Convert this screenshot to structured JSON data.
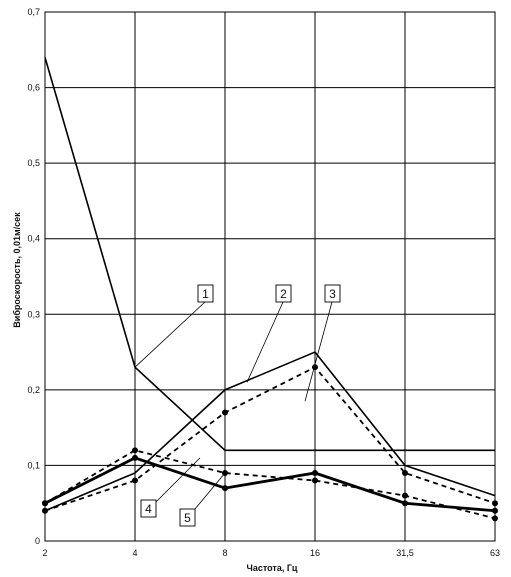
{
  "chart_data": {
    "type": "line",
    "title": "",
    "xlabel": "Частота, Гц",
    "ylabel": "Виброскорость, 0,01м/сек",
    "categories": [
      "2",
      "4",
      "8",
      "16",
      "31,5",
      "63"
    ],
    "ylim": [
      0,
      0.7
    ],
    "yticks": [
      "0",
      "0,1",
      "0,2",
      "0,3",
      "0,4",
      "0,5",
      "0,6",
      "0,7"
    ],
    "grid": true,
    "legend": "none",
    "series": [
      {
        "name": "1",
        "style": "solid-thin",
        "marker": "none",
        "values": [
          0.64,
          0.23,
          0.12,
          0.12,
          0.12,
          0.12
        ]
      },
      {
        "name": "2",
        "style": "solid-thin",
        "marker": "none",
        "values": [
          0.04,
          0.09,
          0.2,
          0.25,
          0.1,
          0.06
        ]
      },
      {
        "name": "3",
        "style": "dashed",
        "marker": "dot",
        "values": [
          0.04,
          0.08,
          0.17,
          0.23,
          0.09,
          0.05
        ]
      },
      {
        "name": "4",
        "style": "dashed",
        "marker": "dot",
        "values": [
          0.05,
          0.12,
          0.09,
          0.08,
          0.06,
          0.03
        ]
      },
      {
        "name": "5",
        "style": "solid-thick",
        "marker": "dot",
        "values": [
          0.05,
          0.11,
          0.07,
          0.09,
          0.05,
          0.04
        ]
      }
    ],
    "callouts": [
      "1",
      "2",
      "3",
      "4",
      "5"
    ]
  }
}
